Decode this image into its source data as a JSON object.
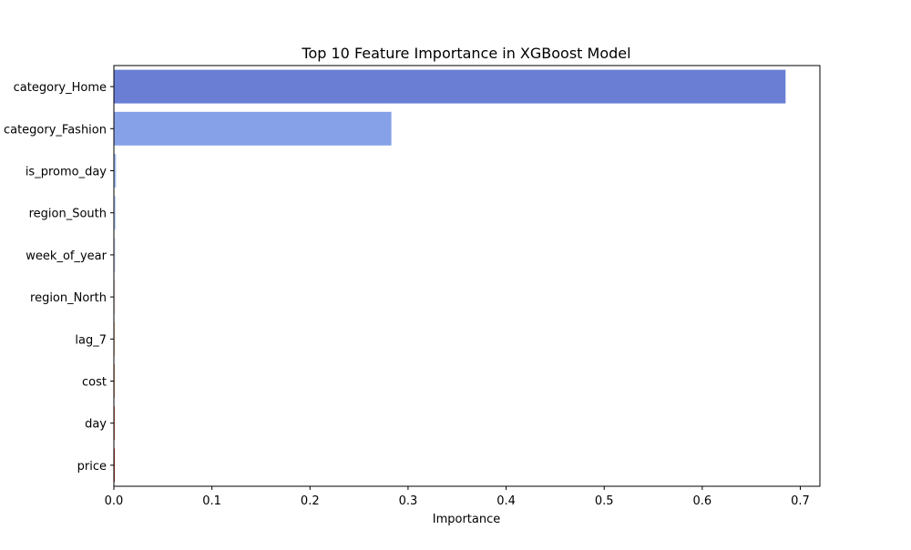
{
  "chart_data": {
    "type": "bar",
    "orientation": "horizontal",
    "title": "Top 10 Feature Importance in XGBoost Model",
    "xlabel": "Importance",
    "ylabel": "",
    "categories": [
      "category_Home",
      "category_Fashion",
      "is_promo_day",
      "region_South",
      "week_of_year",
      "region_North",
      "lag_7",
      "cost",
      "day",
      "price"
    ],
    "values": [
      0.685,
      0.283,
      0.0022,
      0.0019,
      0.0016,
      0.0013,
      0.0011,
      0.001,
      0.0009,
      0.0008
    ],
    "colors": [
      "#6a7fd4",
      "#86a1e7",
      "#a3bff3",
      "#bdd2f6",
      "#d4dcf1",
      "#e9d9cf",
      "#f2c2a6",
      "#e89c7d",
      "#d77356",
      "#c43f30"
    ],
    "xlim": [
      0,
      0.72
    ],
    "xticks": [
      0.0,
      0.1,
      0.2,
      0.3,
      0.4,
      0.5,
      0.6,
      0.7
    ],
    "xtick_labels": [
      "0.0",
      "0.1",
      "0.2",
      "0.3",
      "0.4",
      "0.5",
      "0.6",
      "0.7"
    ],
    "grid": false,
    "legend": "none"
  }
}
